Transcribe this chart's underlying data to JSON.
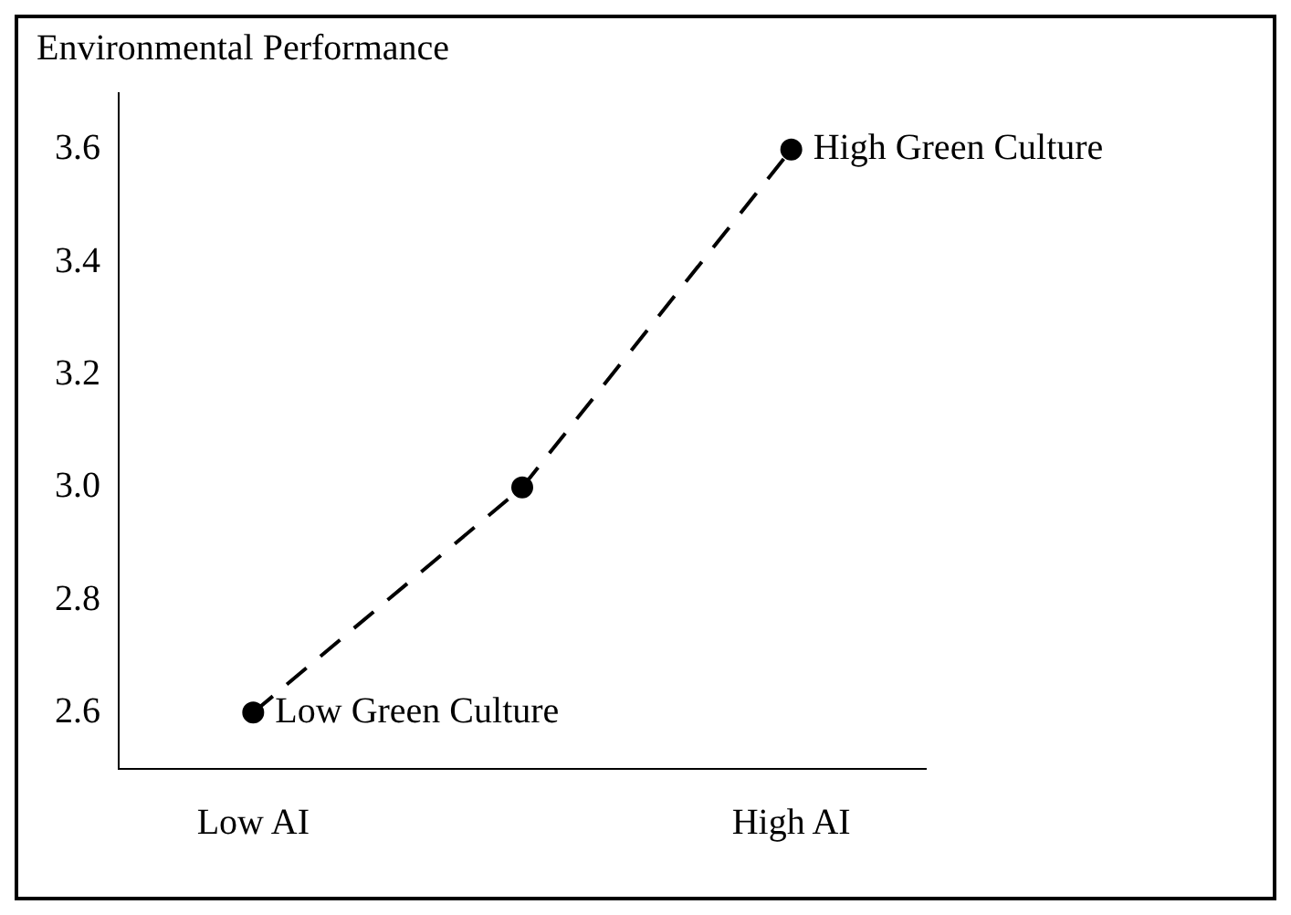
{
  "chart_data": {
    "type": "line",
    "title": "Environmental Performance",
    "categories": [
      "Low AI",
      null,
      "High AI"
    ],
    "series": [
      {
        "color": "#000000",
        "values": [
          2.6,
          3.0,
          3.6
        ]
      }
    ],
    "ylim": [
      2.5,
      3.7
    ],
    "yticks": [
      {
        "value": 2.6,
        "label": "2.6"
      },
      {
        "value": 2.8,
        "label": "2.8"
      },
      {
        "value": 3,
        "label": "3.0"
      },
      {
        "value": 3.2,
        "label": "3.2"
      },
      {
        "value": 3.4,
        "label": "3.4"
      },
      {
        "value": 3.6,
        "label": "3.6"
      }
    ],
    "marker": "circle",
    "line_style": "dashed",
    "grid": false,
    "legend": false,
    "annotations": [
      {
        "text": "Low Green Culture",
        "x": "Low AI",
        "y": 2.6
      },
      {
        "text": "High Green Culture",
        "x": "High AI",
        "y": 3.6
      }
    ]
  }
}
